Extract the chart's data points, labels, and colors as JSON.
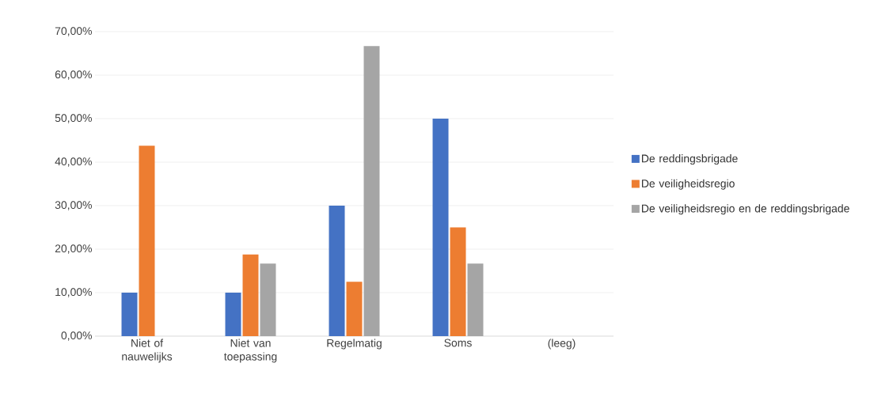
{
  "chart_data": {
    "type": "bar",
    "categories": [
      "Niet of nauwelijks",
      "Niet van toepassing",
      "Regelmatig",
      "Soms",
      "(leeg)"
    ],
    "series": [
      {
        "name": "De reddingsbrigade",
        "color": "#4472c4",
        "values": [
          10,
          10,
          30,
          50,
          null
        ]
      },
      {
        "name": "De veiligheidsregio",
        "color": "#ed7d31",
        "values": [
          43.75,
          18.75,
          12.5,
          25,
          null
        ]
      },
      {
        "name": "De veiligheidsregio en de reddingsbrigade",
        "color": "#a5a5a5",
        "values": [
          null,
          16.67,
          66.67,
          16.67,
          null
        ]
      }
    ],
    "ylim": [
      0,
      70
    ],
    "yticks": [
      {
        "value": 0,
        "label": "0,00%"
      },
      {
        "value": 10,
        "label": "10,00%"
      },
      {
        "value": 20,
        "label": "20,00%"
      },
      {
        "value": 30,
        "label": "30,00%"
      },
      {
        "value": 40,
        "label": "40,00%"
      },
      {
        "value": 50,
        "label": "50,00%"
      },
      {
        "value": 60,
        "label": "60,00%"
      },
      {
        "value": 70,
        "label": "70,00%"
      }
    ],
    "grid": "y",
    "legend": "right"
  }
}
